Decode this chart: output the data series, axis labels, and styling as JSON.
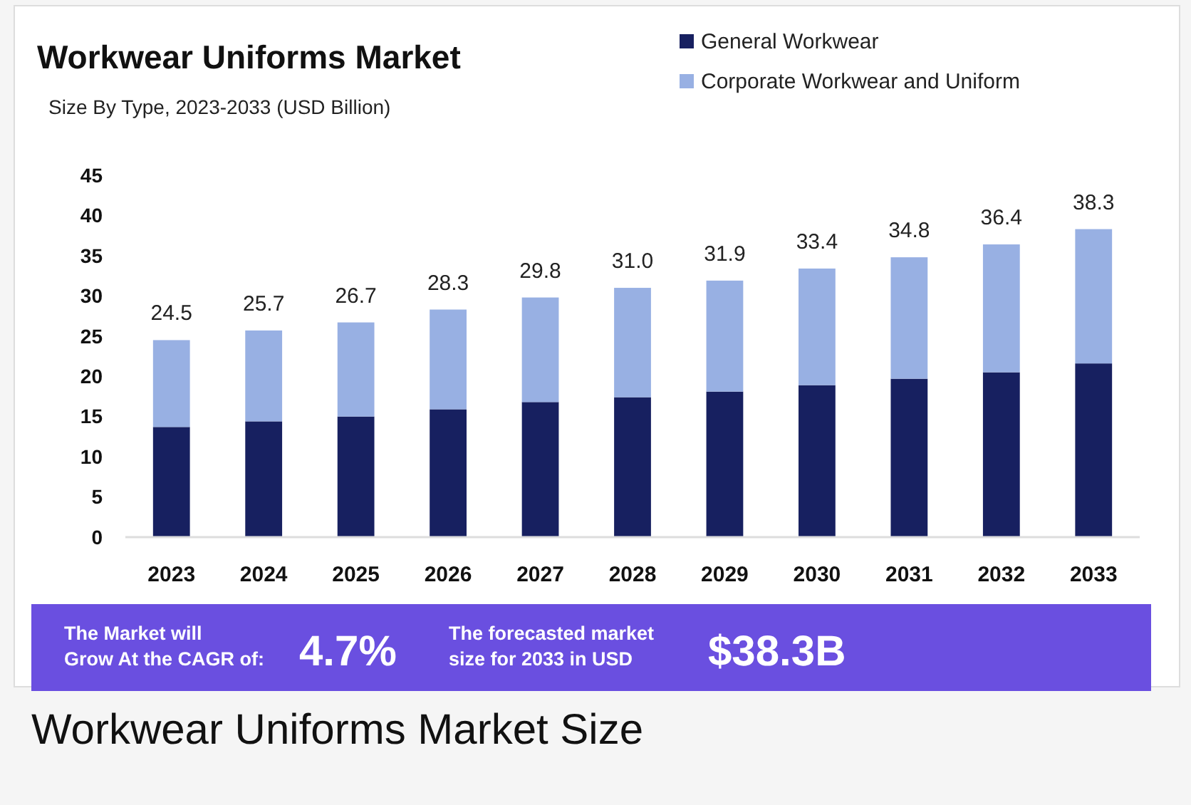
{
  "chart_data": {
    "type": "bar",
    "title": "Workwear Uniforms Market",
    "subtitle": "Size By Type, 2023-2033 (USD Billion)",
    "categories": [
      "2023",
      "2024",
      "2025",
      "2026",
      "2027",
      "2028",
      "2029",
      "2030",
      "2031",
      "2032",
      "2033"
    ],
    "series": [
      {
        "name": "General Workwear",
        "color": "#172060",
        "values": [
          13.7,
          14.4,
          15.0,
          15.9,
          16.8,
          17.4,
          18.1,
          18.9,
          19.7,
          20.5,
          21.6
        ]
      },
      {
        "name": "Corporate Workwear and Uniform",
        "color": "#98b0e3",
        "values": [
          10.8,
          11.3,
          11.7,
          12.4,
          13.0,
          13.6,
          13.8,
          14.5,
          15.1,
          15.9,
          16.7
        ]
      }
    ],
    "stacked": true,
    "totals": [
      "24.5",
      "25.7",
      "26.7",
      "28.3",
      "29.8",
      "31.0",
      "31.9",
      "33.4",
      "34.8",
      "36.4",
      "38.3"
    ],
    "ylim": [
      0,
      45
    ],
    "yticks": [
      0,
      5,
      10,
      15,
      20,
      25,
      30,
      35,
      40,
      45
    ],
    "grid": false,
    "legend": "top right",
    "annotations": [
      "The Market will Grow At the CAGR of:",
      "4.7%",
      "The forecasted market size for 2033 in USD",
      "$38.3B",
      "Workwear Uniforms Market Size"
    ]
  }
}
